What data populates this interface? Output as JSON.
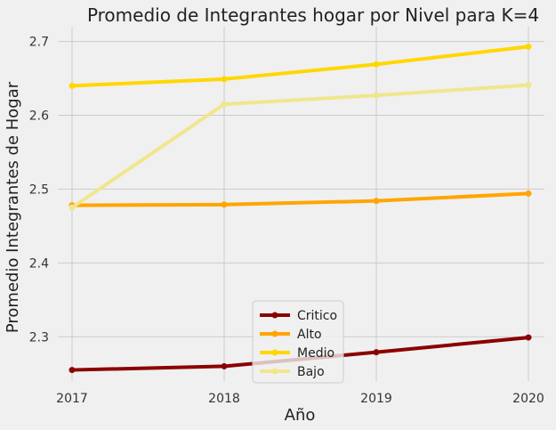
{
  "chart_data": {
    "type": "line",
    "title": "Promedio de Integrantes hogar por Nivel para K=4",
    "xlabel": "Año",
    "ylabel": "Promedio Integrantes de Hogar",
    "x": [
      "2017",
      "2018",
      "2019",
      "2020"
    ],
    "xticks": [
      "2017",
      "2018",
      "2019",
      "2020"
    ],
    "yticks": [
      "2.3",
      "2.4",
      "2.5",
      "2.6",
      "2.7"
    ],
    "ylim": [
      2.24,
      2.72
    ],
    "grid": true,
    "legend_position": "bottom-center",
    "series": [
      {
        "name": "Critico",
        "color": "#8b0000",
        "values": [
          2.255,
          2.26,
          2.279,
          2.299
        ]
      },
      {
        "name": "Alto",
        "color": "#ffa500",
        "values": [
          2.478,
          2.479,
          2.484,
          2.494
        ]
      },
      {
        "name": "Medio",
        "color": "#ffd700",
        "values": [
          2.64,
          2.649,
          2.669,
          2.693
        ]
      },
      {
        "name": "Bajo",
        "color": "#f0e68c",
        "values": [
          2.475,
          2.615,
          2.627,
          2.641
        ]
      }
    ]
  }
}
